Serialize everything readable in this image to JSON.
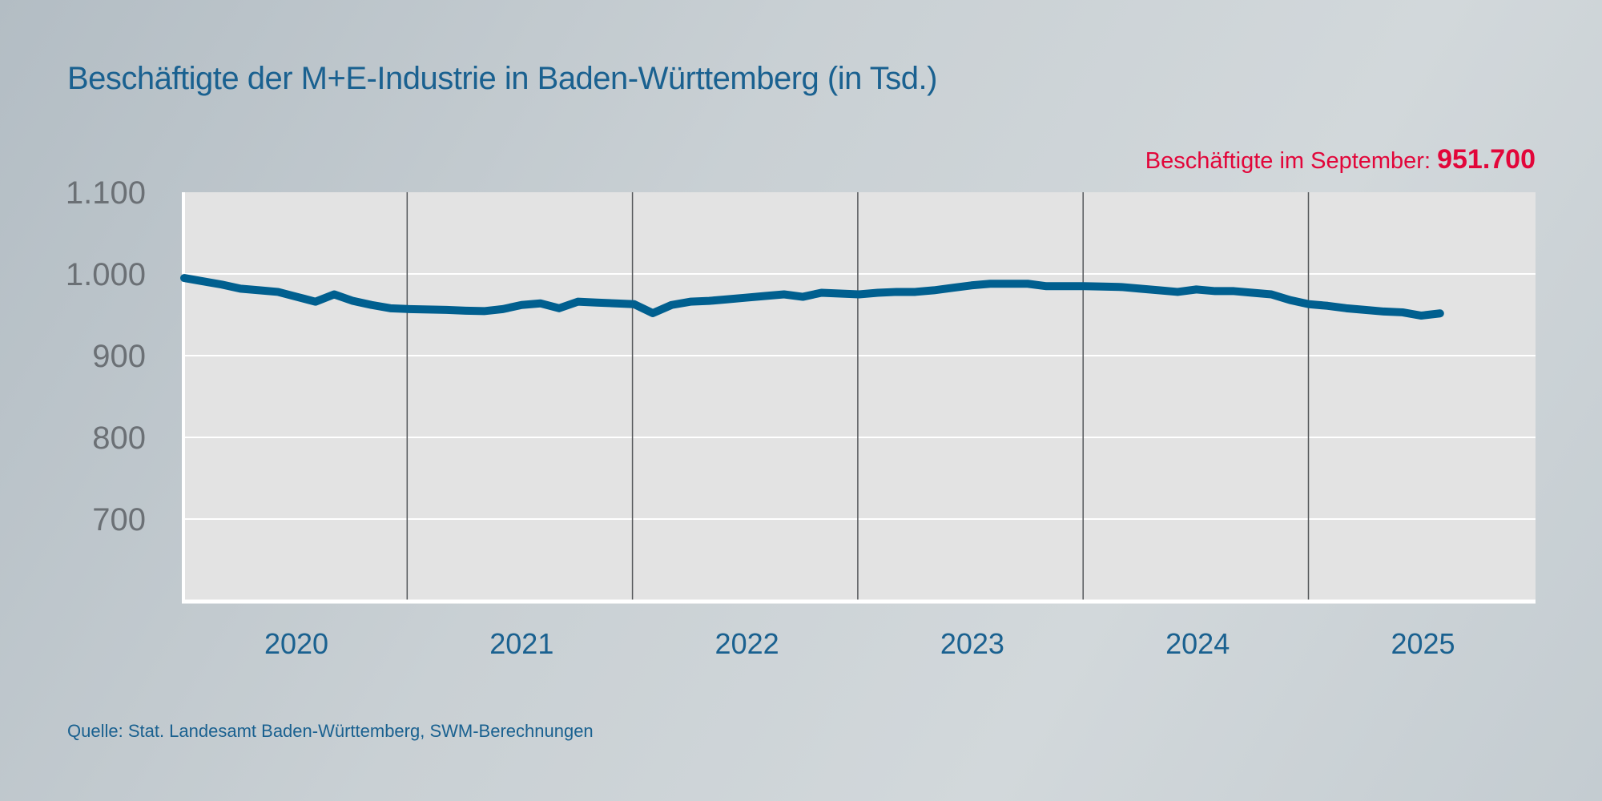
{
  "title": "Beschäftigte der M+E-Industrie in Baden-Württemberg (in Tsd.)",
  "annotation": {
    "label": "Beschäftigte im September:",
    "value": "951.700"
  },
  "source": "Quelle: Stat. Landesamt Baden-Württemberg, SWM-Berechnungen",
  "colors": {
    "line": "#005f8f",
    "annotation": "#e2063a",
    "plot_bg": "#e3e3e3",
    "text": "#1a6190"
  },
  "chart_data": {
    "type": "line",
    "title": "Beschäftigte der M+E-Industrie in Baden-Württemberg (in Tsd.)",
    "xlabel": "",
    "ylabel": "",
    "ylim": [
      600,
      1100
    ],
    "y_ticks": [
      700,
      800,
      900,
      1000,
      1100
    ],
    "y_tick_labels": [
      "700",
      "800",
      "900",
      "1.000",
      "1.100"
    ],
    "x_categories": [
      "2020",
      "2021",
      "2022",
      "2023",
      "2024",
      "2025"
    ],
    "grid": "horizontal gridlines, vertical year separators",
    "x": [
      "2020-02",
      "2020-03",
      "2020-04",
      "2020-05",
      "2020-06",
      "2020-07",
      "2020-08",
      "2020-09",
      "2020-10",
      "2020-11",
      "2020-12",
      "2021-01",
      "2021-02",
      "2021-03",
      "2021-04",
      "2021-05",
      "2021-06",
      "2021-07",
      "2021-08",
      "2021-09",
      "2021-10",
      "2021-11",
      "2021-12",
      "2022-01",
      "2022-02",
      "2022-03",
      "2022-04",
      "2022-05",
      "2022-06",
      "2022-07",
      "2022-08",
      "2022-09",
      "2022-10",
      "2022-11",
      "2022-12",
      "2023-01",
      "2023-02",
      "2023-03",
      "2023-04",
      "2023-05",
      "2023-06",
      "2023-07",
      "2023-08",
      "2023-09",
      "2023-10",
      "2023-11",
      "2023-12",
      "2024-01",
      "2024-02",
      "2024-03",
      "2024-04",
      "2024-05",
      "2024-06",
      "2024-07",
      "2024-08",
      "2024-09",
      "2024-10",
      "2024-11",
      "2024-12",
      "2025-01",
      "2025-02",
      "2025-03",
      "2025-04",
      "2025-05",
      "2025-06",
      "2025-07",
      "2025-08",
      "2025-09"
    ],
    "series": [
      {
        "values": [
          995,
          991,
          987,
          982,
          980,
          978,
          972,
          966,
          975,
          967,
          962,
          958,
          957,
          956.5,
          956,
          955,
          954.5,
          957,
          962,
          964,
          958,
          966,
          965,
          964,
          963,
          952,
          962,
          966,
          967,
          969,
          971,
          973,
          975,
          972,
          977,
          976,
          975,
          977,
          978,
          978,
          980,
          983,
          986,
          988,
          988,
          988,
          985,
          985,
          985,
          984.5,
          984,
          982,
          980,
          978,
          981,
          979,
          979,
          977,
          975,
          968,
          963,
          961,
          958,
          956,
          954,
          953,
          949,
          951.7
        ]
      }
    ]
  }
}
